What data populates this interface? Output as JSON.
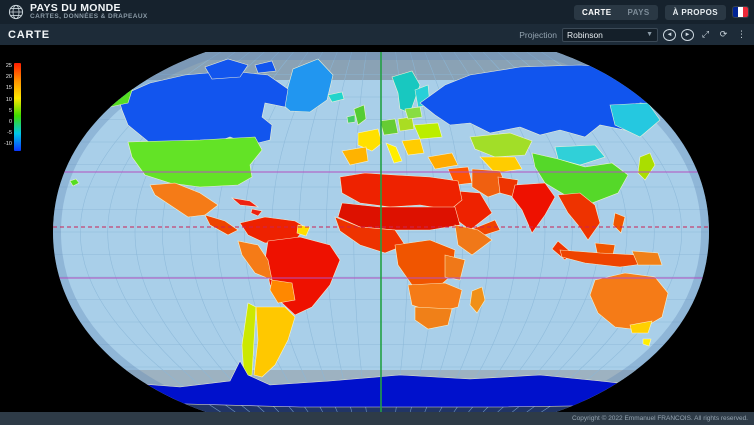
{
  "header": {
    "app_title": "PAYS DU MONDE",
    "app_subtitle": "CARTES, DONNÉES & DRAPEAUX",
    "nav": [
      {
        "label": "CARTE",
        "active": true
      },
      {
        "label": "PAYS",
        "active": false
      },
      {
        "label": "À PROPOS",
        "active": false
      }
    ],
    "language_flag": "france-flag",
    "flag_colors": [
      "#002395",
      "#ffffff",
      "#ed2939"
    ]
  },
  "toolbar": {
    "page_title": "CARTE",
    "projection_label": "Projection",
    "projection_value": "Robinson",
    "icon_buttons": [
      "previous-projection",
      "next-projection",
      "fullscreen",
      "refresh",
      "more-options"
    ]
  },
  "legend": {
    "ticks": [
      "25",
      "20",
      "15",
      "10",
      "5",
      "0",
      "-5",
      "-10"
    ],
    "gradient": [
      "#ff1c00",
      "#ff9100",
      "#ffe800",
      "#3edd00",
      "#00c8e8",
      "#0a36ff"
    ]
  },
  "map": {
    "projection": "Robinson",
    "ocean_color": "#a9cfe9",
    "graticule_color": "#8bb7d8",
    "polar_band_color": "#95abbc",
    "lines": {
      "equator": {
        "color": "#cc2255",
        "style": "dashed"
      },
      "tropic_of_cancer": {
        "color": "#b44fc0",
        "style": "solid"
      },
      "tropic_of_capricorn": {
        "color": "#b44fc0",
        "style": "solid"
      },
      "prime_meridian": {
        "color": "#22a044",
        "style": "solid"
      }
    },
    "temperature_palette_hot_to_cold": [
      "#dd1100",
      "#ee2200",
      "#f05500",
      "#f57b17",
      "#ffb300",
      "#ffe000",
      "#cce800",
      "#55d829",
      "#a2de28",
      "#22d4cc",
      "#2196f0",
      "#1155ee",
      "#0011cc"
    ]
  },
  "footer": {
    "copyright": "Copyright © 2022 Emmanuel FRANCOIS. All rights reserved."
  }
}
